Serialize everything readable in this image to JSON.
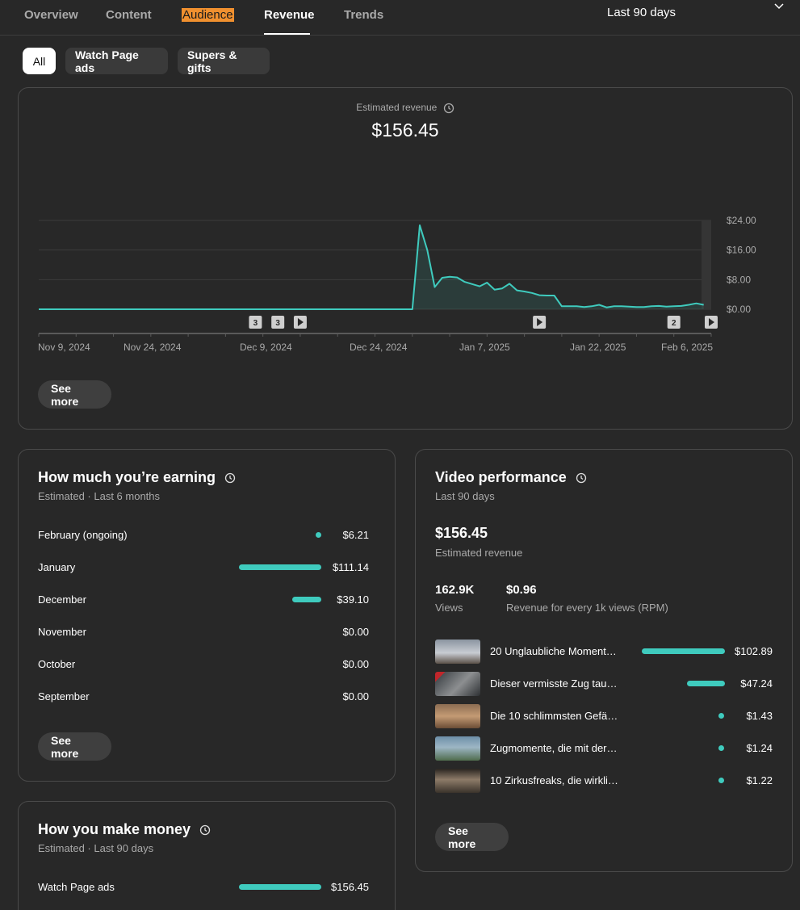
{
  "tabs": [
    {
      "label": "Overview",
      "state": "normal"
    },
    {
      "label": "Content",
      "state": "normal"
    },
    {
      "label": "Audience",
      "state": "highlight"
    },
    {
      "label": "Revenue",
      "state": "active"
    },
    {
      "label": "Trends",
      "state": "normal"
    }
  ],
  "period": {
    "label": "Last 90 days"
  },
  "chips": [
    "All",
    "Watch Page ads",
    "Supers & gifts"
  ],
  "revenue_card": {
    "metric_label": "Estimated revenue",
    "metric_value": "$156.45",
    "see_more": "See more"
  },
  "chart_data": {
    "type": "area",
    "title": "Estimated revenue",
    "x_dates": [
      "Nov 9, 2024",
      "Nov 24, 2024",
      "Dec 9, 2024",
      "Dec 24, 2024",
      "Jan 7, 2025",
      "Jan 22, 2025",
      "Feb 6, 2025"
    ],
    "x_range": [
      "2024-11-09",
      "2025-02-07"
    ],
    "y_ticks": [
      "$24.00",
      "$16.00",
      "$8.00",
      "$0.00"
    ],
    "y_range": [
      0,
      24
    ],
    "points": [
      [
        "2024-11-09",
        0
      ],
      [
        "2024-12-29",
        0
      ],
      [
        "2024-12-30",
        22.7
      ],
      [
        "2024-12-31",
        16
      ],
      [
        "2025-01-01",
        6
      ],
      [
        "2025-01-02",
        8.5
      ],
      [
        "2025-01-03",
        8.8
      ],
      [
        "2025-01-04",
        8.6
      ],
      [
        "2025-01-05",
        7.4
      ],
      [
        "2025-01-06",
        6.8
      ],
      [
        "2025-01-07",
        6.2
      ],
      [
        "2025-01-08",
        7.2
      ],
      [
        "2025-01-09",
        5.3
      ],
      [
        "2025-01-10",
        5.6
      ],
      [
        "2025-01-11",
        6.9
      ],
      [
        "2025-01-12",
        5.1
      ],
      [
        "2025-01-13",
        4.8
      ],
      [
        "2025-01-14",
        4.4
      ],
      [
        "2025-01-15",
        3.8
      ],
      [
        "2025-01-16",
        3.7
      ],
      [
        "2025-01-17",
        3.7
      ],
      [
        "2025-01-18",
        0.8
      ],
      [
        "2025-01-19",
        0.8
      ],
      [
        "2025-01-20",
        0.8
      ],
      [
        "2025-01-21",
        0.6
      ],
      [
        "2025-01-22",
        0.8
      ],
      [
        "2025-01-23",
        1.2
      ],
      [
        "2025-01-24",
        0.5
      ],
      [
        "2025-01-25",
        0.8
      ],
      [
        "2025-01-26",
        0.8
      ],
      [
        "2025-01-27",
        0.7
      ],
      [
        "2025-01-28",
        0.6
      ],
      [
        "2025-01-29",
        0.6
      ],
      [
        "2025-01-30",
        0.8
      ],
      [
        "2025-01-31",
        0.9
      ],
      [
        "2025-02-01",
        0.7
      ],
      [
        "2025-02-02",
        0.8
      ],
      [
        "2025-02-03",
        0.9
      ],
      [
        "2025-02-04",
        1.2
      ],
      [
        "2025-02-05",
        1.6
      ],
      [
        "2025-02-06",
        1.2
      ]
    ],
    "markers": [
      {
        "date": "2024-12-08",
        "kind": "count",
        "label": "3"
      },
      {
        "date": "2024-12-11",
        "kind": "count",
        "label": "3"
      },
      {
        "date": "2024-12-14",
        "kind": "video"
      },
      {
        "date": "2025-01-15",
        "kind": "video"
      },
      {
        "date": "2025-02-02",
        "kind": "count",
        "label": "2"
      },
      {
        "date": "2025-02-07",
        "kind": "video"
      }
    ],
    "line_color": "#3fcbbe",
    "grid": true
  },
  "earning": {
    "title": "How much you’re earning",
    "subtitle": "Estimated · Last 6 months",
    "max_value": 111.14,
    "rows": [
      {
        "label": "February (ongoing)",
        "value": "$6.21",
        "amount": 6.21
      },
      {
        "label": "January",
        "value": "$111.14",
        "amount": 111.14
      },
      {
        "label": "December",
        "value": "$39.10",
        "amount": 39.1
      },
      {
        "label": "November",
        "value": "$0.00",
        "amount": 0
      },
      {
        "label": "October",
        "value": "$0.00",
        "amount": 0
      },
      {
        "label": "September",
        "value": "$0.00",
        "amount": 0
      }
    ],
    "see_more": "See more"
  },
  "money": {
    "title": "How you make money",
    "subtitle": "Estimated · Last 90 days",
    "max_value": 156.45,
    "rows": [
      {
        "label": "Watch Page ads",
        "value": "$156.45",
        "amount": 156.45
      }
    ]
  },
  "video_perf": {
    "title": "Video performance",
    "subtitle": "Last 90 days",
    "revenue_value": "$156.45",
    "revenue_label": "Estimated revenue",
    "views_value": "162.9K",
    "views_label": "Views",
    "rpm_value": "$0.96",
    "rpm_label": "Revenue for every 1k views (RPM)",
    "max_value": 102.89,
    "videos": [
      {
        "title": "20 Unglaubliche Moment…",
        "value": "$102.89",
        "amount": 102.89
      },
      {
        "title": "Dieser vermisste Zug tau…",
        "value": "$47.24",
        "amount": 47.24
      },
      {
        "title": "Die 10 schlimmsten Gefä…",
        "value": "$1.43",
        "amount": 1.43
      },
      {
        "title": "Zugmomente, die mit der…",
        "value": "$1.24",
        "amount": 1.24
      },
      {
        "title": "10 Zirkusfreaks, die wirkli…",
        "value": "$1.22",
        "amount": 1.22
      }
    ],
    "see_more": "See more"
  }
}
